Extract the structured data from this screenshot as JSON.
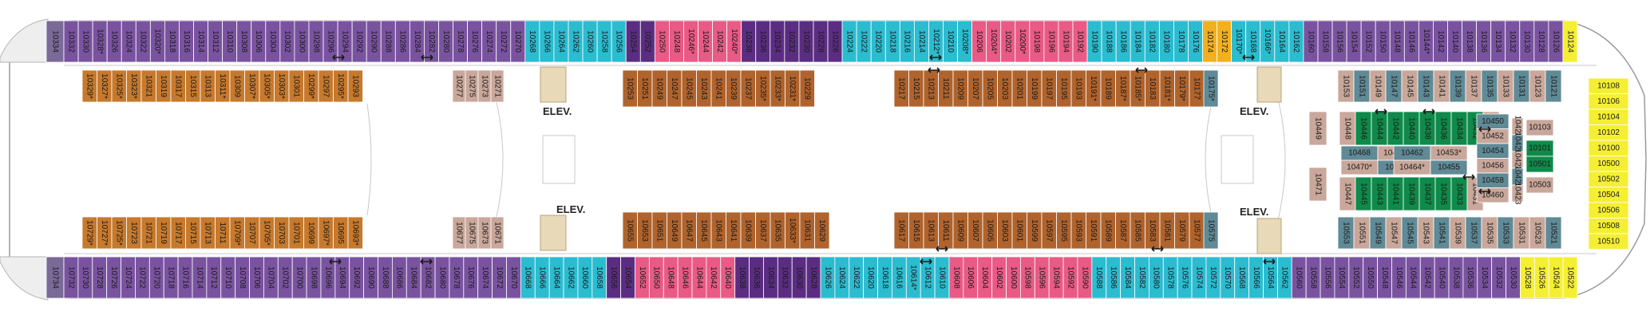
{
  "legend": {
    "inside": "#c9a79a",
    "oceanview": "#5f8a96",
    "balcony": "#7a53a0",
    "boardwalk_balcony": "#c7792c",
    "park_balcony": "#0f8a4a",
    "central_park_balcony": "#b0632c",
    "suite_pink": "#e95a86",
    "suite_purple": "#5b2d82",
    "junior_suite": "#2bbcd0",
    "accessible": "#f2b01e",
    "aft_suite": "#7a6a98",
    "connecting": "#1a1a1a",
    "forward_yellow": "#f5ef33"
  },
  "elevators": [
    "ELEV.",
    "ELEV.",
    "ELEV.",
    "ELEV."
  ],
  "top_row": [
    {
      "n": "10334",
      "t": "aft_suite"
    },
    {
      "n": "10332",
      "t": "balcony"
    },
    {
      "n": "10330",
      "t": "balcony"
    },
    {
      "n": "10328*",
      "t": "balcony"
    },
    {
      "n": "10326",
      "t": "balcony"
    },
    {
      "n": "10324",
      "t": "balcony"
    },
    {
      "n": "10322",
      "t": "balcony"
    },
    {
      "n": "10320*",
      "t": "balcony"
    },
    {
      "n": "10318",
      "t": "balcony"
    },
    {
      "n": "10316",
      "t": "balcony"
    },
    {
      "n": "10314",
      "t": "balcony"
    },
    {
      "n": "10312",
      "t": "balcony"
    },
    {
      "n": "10310",
      "t": "balcony"
    },
    {
      "n": "10308",
      "t": "balcony"
    },
    {
      "n": "10306",
      "t": "balcony"
    },
    {
      "n": "10304",
      "t": "balcony"
    },
    {
      "n": "10302",
      "t": "balcony"
    },
    {
      "n": "10300",
      "t": "balcony"
    },
    {
      "n": "10298",
      "t": "balcony"
    },
    {
      "n": "10296",
      "t": "balcony"
    },
    {
      "n": "10294",
      "t": "balcony"
    },
    {
      "n": "10292",
      "t": "balcony"
    },
    {
      "n": "10290",
      "t": "balcony"
    },
    {
      "n": "10288",
      "t": "balcony"
    },
    {
      "n": "10286",
      "t": "balcony"
    },
    {
      "n": "10284",
      "t": "balcony"
    },
    {
      "n": "10282",
      "t": "balcony"
    },
    {
      "n": "10280",
      "t": "balcony"
    },
    {
      "n": "10278",
      "t": "balcony"
    },
    {
      "n": "10276",
      "t": "balcony"
    },
    {
      "n": "10274",
      "t": "balcony"
    },
    {
      "n": "10272",
      "t": "balcony"
    },
    {
      "n": "10270",
      "t": "balcony"
    },
    {
      "n": "10268",
      "t": "junior_suite"
    },
    {
      "n": "10266",
      "t": "junior_suite"
    },
    {
      "n": "10264",
      "t": "junior_suite"
    },
    {
      "n": "10262",
      "t": "junior_suite"
    },
    {
      "n": "10260",
      "t": "junior_suite"
    },
    {
      "n": "10258",
      "t": "junior_suite"
    },
    {
      "n": "10256",
      "t": "junior_suite"
    },
    {
      "n": "10254",
      "t": "suite_purple"
    },
    {
      "n": "10252",
      "t": "suite_purple"
    },
    {
      "n": "10250",
      "t": "suite_pink"
    },
    {
      "n": "10248",
      "t": "suite_pink"
    },
    {
      "n": "10246*",
      "t": "suite_pink"
    },
    {
      "n": "10244",
      "t": "suite_pink"
    },
    {
      "n": "10242",
      "t": "suite_pink"
    },
    {
      "n": "10240*",
      "t": "suite_pink"
    },
    {
      "n": "10238",
      "t": "suite_purple"
    },
    {
      "n": "10236",
      "t": "suite_purple"
    },
    {
      "n": "10234",
      "t": "suite_purple"
    },
    {
      "n": "10232",
      "t": "suite_purple"
    },
    {
      "n": "10230",
      "t": "suite_purple"
    },
    {
      "n": "10228",
      "t": "suite_purple"
    },
    {
      "n": "10226",
      "t": "suite_purple"
    },
    {
      "n": "10224",
      "t": "junior_suite"
    },
    {
      "n": "10222",
      "t": "junior_suite"
    },
    {
      "n": "10220",
      "t": "junior_suite"
    },
    {
      "n": "10218",
      "t": "junior_suite"
    },
    {
      "n": "10216",
      "t": "junior_suite"
    },
    {
      "n": "10214",
      "t": "junior_suite"
    },
    {
      "n": "10212*",
      "t": "junior_suite"
    },
    {
      "n": "10210",
      "t": "junior_suite"
    },
    {
      "n": "10208*",
      "t": "junior_suite"
    },
    {
      "n": "10206",
      "t": "suite_pink"
    },
    {
      "n": "10204*",
      "t": "suite_pink"
    },
    {
      "n": "10202",
      "t": "suite_pink"
    },
    {
      "n": "10200*",
      "t": "suite_pink"
    },
    {
      "n": "10198",
      "t": "suite_pink"
    },
    {
      "n": "10196",
      "t": "suite_pink"
    },
    {
      "n": "10194",
      "t": "suite_pink"
    },
    {
      "n": "10192",
      "t": "suite_pink"
    },
    {
      "n": "10190",
      "t": "junior_suite"
    },
    {
      "n": "10188",
      "t": "junior_suite"
    },
    {
      "n": "10186",
      "t": "junior_suite"
    },
    {
      "n": "10184",
      "t": "junior_suite"
    },
    {
      "n": "10182",
      "t": "junior_suite"
    },
    {
      "n": "10180",
      "t": "junior_suite"
    },
    {
      "n": "10178",
      "t": "junior_suite"
    },
    {
      "n": "10176",
      "t": "junior_suite"
    },
    {
      "n": "10174",
      "t": "accessible"
    },
    {
      "n": "10172",
      "t": "accessible"
    },
    {
      "n": "10170*",
      "t": "junior_suite"
    },
    {
      "n": "10168",
      "t": "junior_suite"
    },
    {
      "n": "10166*",
      "t": "junior_suite"
    },
    {
      "n": "10164",
      "t": "junior_suite"
    },
    {
      "n": "10162",
      "t": "junior_suite"
    },
    {
      "n": "10160",
      "t": "balcony"
    },
    {
      "n": "10158",
      "t": "balcony"
    },
    {
      "n": "10156",
      "t": "balcony"
    },
    {
      "n": "10154",
      "t": "balcony"
    },
    {
      "n": "10152",
      "t": "balcony"
    },
    {
      "n": "10150",
      "t": "balcony"
    },
    {
      "n": "10148",
      "t": "balcony"
    },
    {
      "n": "10146",
      "t": "balcony"
    },
    {
      "n": "10144*",
      "t": "balcony"
    },
    {
      "n": "10142",
      "t": "balcony"
    },
    {
      "n": "10140",
      "t": "balcony"
    },
    {
      "n": "10138",
      "t": "balcony"
    },
    {
      "n": "10136",
      "t": "balcony"
    },
    {
      "n": "10134",
      "t": "balcony"
    },
    {
      "n": "10132",
      "t": "balcony"
    },
    {
      "n": "10130",
      "t": "balcony"
    },
    {
      "n": "10128",
      "t": "balcony"
    },
    {
      "n": "10126",
      "t": "balcony"
    },
    {
      "n": "10124",
      "t": "forward_yellow"
    }
  ],
  "bottom_row": [
    {
      "n": "10734",
      "t": "aft_suite"
    },
    {
      "n": "10732",
      "t": "balcony"
    },
    {
      "n": "10730",
      "t": "balcony"
    },
    {
      "n": "10728",
      "t": "balcony"
    },
    {
      "n": "10726",
      "t": "balcony"
    },
    {
      "n": "10724",
      "t": "balcony"
    },
    {
      "n": "10722",
      "t": "balcony"
    },
    {
      "n": "10720",
      "t": "balcony"
    },
    {
      "n": "10718",
      "t": "balcony"
    },
    {
      "n": "10716",
      "t": "balcony"
    },
    {
      "n": "10714",
      "t": "balcony"
    },
    {
      "n": "10712",
      "t": "balcony"
    },
    {
      "n": "10710",
      "t": "balcony"
    },
    {
      "n": "10708",
      "t": "balcony"
    },
    {
      "n": "10706",
      "t": "balcony"
    },
    {
      "n": "10704",
      "t": "balcony"
    },
    {
      "n": "10702",
      "t": "balcony"
    },
    {
      "n": "10700",
      "t": "balcony"
    },
    {
      "n": "10698",
      "t": "balcony"
    },
    {
      "n": "10696",
      "t": "balcony"
    },
    {
      "n": "10694",
      "t": "balcony"
    },
    {
      "n": "10692",
      "t": "balcony"
    },
    {
      "n": "10690",
      "t": "balcony"
    },
    {
      "n": "10688",
      "t": "balcony"
    },
    {
      "n": "10686",
      "t": "balcony"
    },
    {
      "n": "10684",
      "t": "balcony"
    },
    {
      "n": "10682",
      "t": "balcony"
    },
    {
      "n": "10680",
      "t": "balcony"
    },
    {
      "n": "10678",
      "t": "balcony"
    },
    {
      "n": "10676",
      "t": "balcony"
    },
    {
      "n": "10674",
      "t": "balcony"
    },
    {
      "n": "10672",
      "t": "balcony"
    },
    {
      "n": "10670",
      "t": "balcony"
    },
    {
      "n": "10668",
      "t": "junior_suite"
    },
    {
      "n": "10666",
      "t": "junior_suite"
    },
    {
      "n": "10664",
      "t": "junior_suite"
    },
    {
      "n": "10662",
      "t": "junior_suite"
    },
    {
      "n": "10660",
      "t": "junior_suite"
    },
    {
      "n": "10658",
      "t": "junior_suite"
    },
    {
      "n": "10656",
      "t": "suite_purple"
    },
    {
      "n": "10654",
      "t": "suite_purple"
    },
    {
      "n": "10652",
      "t": "suite_pink"
    },
    {
      "n": "10650",
      "t": "suite_pink"
    },
    {
      "n": "10648",
      "t": "suite_pink"
    },
    {
      "n": "10646",
      "t": "suite_pink"
    },
    {
      "n": "10644",
      "t": "suite_pink"
    },
    {
      "n": "10642",
      "t": "suite_pink"
    },
    {
      "n": "10640",
      "t": "suite_pink"
    },
    {
      "n": "10638",
      "t": "suite_purple"
    },
    {
      "n": "10636",
      "t": "suite_purple"
    },
    {
      "n": "10634",
      "t": "suite_purple"
    },
    {
      "n": "10632",
      "t": "suite_purple"
    },
    {
      "n": "10630",
      "t": "suite_purple"
    },
    {
      "n": "10628",
      "t": "suite_purple"
    },
    {
      "n": "10626",
      "t": "junior_suite"
    },
    {
      "n": "10624",
      "t": "junior_suite"
    },
    {
      "n": "10622",
      "t": "junior_suite"
    },
    {
      "n": "10620",
      "t": "junior_suite"
    },
    {
      "n": "10618",
      "t": "junior_suite"
    },
    {
      "n": "10616",
      "t": "junior_suite"
    },
    {
      "n": "10614*",
      "t": "junior_suite"
    },
    {
      "n": "10612",
      "t": "junior_suite"
    },
    {
      "n": "10610",
      "t": "junior_suite"
    },
    {
      "n": "10608",
      "t": "suite_pink"
    },
    {
      "n": "10606",
      "t": "suite_pink"
    },
    {
      "n": "10604",
      "t": "suite_pink"
    },
    {
      "n": "10602",
      "t": "suite_pink"
    },
    {
      "n": "10600",
      "t": "suite_pink"
    },
    {
      "n": "10598",
      "t": "suite_pink"
    },
    {
      "n": "10596",
      "t": "suite_pink"
    },
    {
      "n": "10594",
      "t": "suite_pink"
    },
    {
      "n": "10592",
      "t": "suite_pink"
    },
    {
      "n": "10590",
      "t": "suite_pink"
    },
    {
      "n": "10588",
      "t": "junior_suite"
    },
    {
      "n": "10586",
      "t": "junior_suite"
    },
    {
      "n": "10584",
      "t": "junior_suite"
    },
    {
      "n": "10582",
      "t": "junior_suite"
    },
    {
      "n": "10580",
      "t": "junior_suite"
    },
    {
      "n": "10578",
      "t": "junior_suite"
    },
    {
      "n": "10576",
      "t": "junior_suite"
    },
    {
      "n": "10574",
      "t": "junior_suite"
    },
    {
      "n": "10572",
      "t": "junior_suite"
    },
    {
      "n": "10570",
      "t": "junior_suite"
    },
    {
      "n": "10568",
      "t": "junior_suite"
    },
    {
      "n": "10566",
      "t": "junior_suite"
    },
    {
      "n": "10564",
      "t": "junior_suite"
    },
    {
      "n": "10562",
      "t": "junior_suite"
    },
    {
      "n": "10560",
      "t": "balcony"
    },
    {
      "n": "10558",
      "t": "balcony"
    },
    {
      "n": "10556",
      "t": "balcony"
    },
    {
      "n": "10554",
      "t": "balcony"
    },
    {
      "n": "10552",
      "t": "balcony"
    },
    {
      "n": "10550",
      "t": "balcony"
    },
    {
      "n": "10548",
      "t": "balcony"
    },
    {
      "n": "10546",
      "t": "balcony"
    },
    {
      "n": "10544",
      "t": "balcony"
    },
    {
      "n": "10542",
      "t": "balcony"
    },
    {
      "n": "10540",
      "t": "balcony"
    },
    {
      "n": "10538",
      "t": "balcony"
    },
    {
      "n": "10536",
      "t": "balcony"
    },
    {
      "n": "10534",
      "t": "balcony"
    },
    {
      "n": "10532",
      "t": "balcony"
    },
    {
      "n": "10530",
      "t": "balcony"
    },
    {
      "n": "10528",
      "t": "forward_yellow"
    },
    {
      "n": "10526",
      "t": "forward_yellow"
    },
    {
      "n": "10524",
      "t": "forward_yellow"
    },
    {
      "n": "10522",
      "t": "forward_yellow"
    }
  ],
  "boardwalk_top": [
    "10329*",
    "10327*",
    "10325*",
    "10323*",
    "10321",
    "10319",
    "10317",
    "10315",
    "10313",
    "10311*",
    "10309",
    "10307*",
    "10305*",
    "10303*",
    "10301",
    "10299*",
    "10297",
    "10295*",
    "10293"
  ],
  "boardwalk_bottom": [
    "10729*",
    "10727*",
    "10725*",
    "10723",
    "10721",
    "10719",
    "10717",
    "10715",
    "10713",
    "10711",
    "10709*",
    "10707",
    "10705*",
    "10703",
    "10701",
    "10699",
    "10697*",
    "10695",
    "10693*"
  ],
  "inside_aft_top": [
    "10277",
    "10275",
    "10273",
    "10271"
  ],
  "inside_aft_bottom": [
    "10677",
    "10675",
    "10673",
    "10671"
  ],
  "park_mid_top": [
    "10253",
    "10251",
    "10249",
    "10247",
    "10245",
    "10243",
    "10241",
    "10239",
    "10237",
    "10235*",
    "10233*",
    "10231*",
    "10229"
  ],
  "park_mid_bottom": [
    "10655",
    "10653",
    "10651",
    "10649",
    "10647",
    "10645",
    "10643",
    "10641",
    "10639",
    "10637",
    "10635",
    "10633*",
    "10631",
    "10629"
  ],
  "park_fwd_top": [
    "10217",
    "10215",
    "10213",
    "10211",
    "10209",
    "10207",
    "10205",
    "10203",
    "10201",
    "10199",
    "10197",
    "10195",
    "10193",
    "10191*",
    "10189",
    "10187*",
    "10185*",
    "10183",
    "10181*",
    "10179*",
    "10177"
  ],
  "park_fwd_bottom": [
    "10617",
    "10615",
    "10613",
    "10611",
    "10609",
    "10607",
    "10605",
    "10603",
    "10601",
    "10599",
    "10597",
    "10595",
    "10593",
    "10591",
    "10589",
    "10587",
    "10585",
    "10583",
    "10581",
    "10579",
    "10577"
  ],
  "ocean_175": "10175*",
  "ocean_575": "10575",
  "fwd_inner_top": [
    {
      "n": "10153",
      "t": "inside"
    },
    {
      "n": "10151",
      "t": "oceanview"
    },
    {
      "n": "10149",
      "t": "inside"
    },
    {
      "n": "10147",
      "t": "oceanview"
    },
    {
      "n": "10145",
      "t": "inside"
    },
    {
      "n": "10143",
      "t": "oceanview"
    },
    {
      "n": "10141",
      "t": "inside"
    },
    {
      "n": "10139",
      "t": "oceanview"
    },
    {
      "n": "10137",
      "t": "inside"
    },
    {
      "n": "10135",
      "t": "oceanview"
    },
    {
      "n": "10133",
      "t": "inside"
    },
    {
      "n": "10131",
      "t": "oceanview"
    },
    {
      "n": "10123",
      "t": "inside"
    },
    {
      "n": "10121",
      "t": "oceanview"
    }
  ],
  "fwd_inner_bottom": [
    {
      "n": "10553",
      "t": "oceanview"
    },
    {
      "n": "10551",
      "t": "inside"
    },
    {
      "n": "10549",
      "t": "oceanview"
    },
    {
      "n": "10547",
      "t": "inside"
    },
    {
      "n": "10545",
      "t": "oceanview"
    },
    {
      "n": "10543",
      "t": "inside"
    },
    {
      "n": "10541",
      "t": "oceanview"
    },
    {
      "n": "10539",
      "t": "inside"
    },
    {
      "n": "10537",
      "t": "oceanview"
    },
    {
      "n": "10535",
      "t": "inside"
    },
    {
      "n": "10533",
      "t": "oceanview"
    },
    {
      "n": "10531",
      "t": "inside"
    },
    {
      "n": "10523",
      "t": "inside"
    },
    {
      "n": "10521",
      "t": "oceanview"
    }
  ],
  "inner_block": {
    "rowA": [
      {
        "n": "10448",
        "t": "inside"
      },
      {
        "n": "10446",
        "t": "park_balcony"
      },
      {
        "n": "10444",
        "t": "park_balcony"
      },
      {
        "n": "10442",
        "t": "park_balcony"
      },
      {
        "n": "10440",
        "t": "park_balcony"
      },
      {
        "n": "10438",
        "t": "park_balcony"
      },
      {
        "n": "10436",
        "t": "park_balcony"
      },
      {
        "n": "10434",
        "t": "park_balcony"
      },
      {
        "n": "10432",
        "t": "park_balcony"
      },
      {
        "n": "10430",
        "t": "inside"
      }
    ],
    "rowB": [
      {
        "n": "10447",
        "t": "inside"
      },
      {
        "n": "10445",
        "t": "park_balcony"
      },
      {
        "n": "10443",
        "t": "park_balcony"
      },
      {
        "n": "10441",
        "t": "park_balcony"
      },
      {
        "n": "10439",
        "t": "park_balcony"
      },
      {
        "n": "10437",
        "t": "park_balcony"
      },
      {
        "n": "10435",
        "t": "park_balcony"
      },
      {
        "n": "10433",
        "t": "park_balcony"
      },
      {
        "n": "10431",
        "t": "inside"
      }
    ],
    "mid_left": [
      {
        "n": "10468",
        "t": "oceanview"
      },
      {
        "n": "10461*",
        "t": "inside"
      },
      {
        "n": "10470*",
        "t": "inside"
      },
      {
        "n": "10463",
        "t": "oceanview"
      }
    ],
    "mid_right": [
      {
        "n": "10462",
        "t": "oceanview"
      },
      {
        "n": "10453*",
        "t": "inside"
      },
      {
        "n": "10464*",
        "t": "inside"
      },
      {
        "n": "10455",
        "t": "oceanview"
      }
    ],
    "right_col": [
      {
        "n": "10450",
        "t": "oceanview"
      },
      {
        "n": "10452",
        "t": "inside"
      },
      {
        "n": "10454",
        "t": "oceanview"
      },
      {
        "n": "10456",
        "t": "inside"
      },
      {
        "n": "10458",
        "t": "oceanview"
      },
      {
        "n": "10460",
        "t": "inside"
      }
    ],
    "far_col": [
      {
        "n": "10428",
        "t": "inside"
      },
      {
        "n": "10426",
        "t": "oceanview"
      },
      {
        "n": "10424",
        "t": "inside"
      },
      {
        "n": "10425",
        "t": "oceanview"
      },
      {
        "n": "10423",
        "t": "inside"
      }
    ],
    "far_right": [
      {
        "n": "10103",
        "t": "inside"
      },
      {
        "n": "10101",
        "t": "park_balcony"
      },
      {
        "n": "10501",
        "t": "park_balcony"
      },
      {
        "n": "10503",
        "t": "inside"
      }
    ],
    "side_left": [
      "10449",
      "10471"
    ]
  },
  "forward_column": [
    "10108",
    "10106",
    "10104",
    "10102",
    "10100",
    "10500",
    "10502",
    "10504",
    "10506",
    "10508",
    "10510"
  ]
}
